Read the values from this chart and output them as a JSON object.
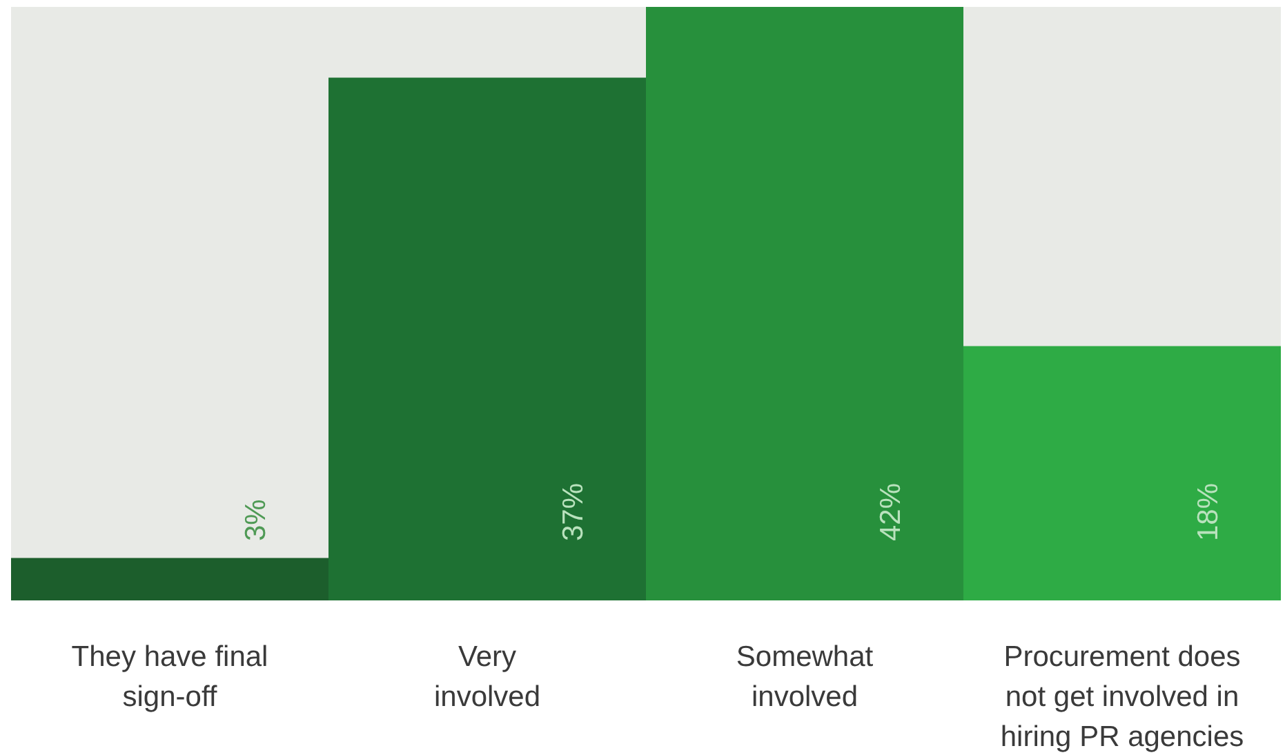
{
  "chart_data": {
    "type": "bar",
    "categories": [
      "They have final sign-off",
      "Very involved",
      "Somewhat involved",
      "Procurement does not get involved in hiring PR agencies"
    ],
    "values": [
      3,
      37,
      42,
      18
    ],
    "colors": [
      "#1c5e2c",
      "#1e7133",
      "#27903c",
      "#2eab45"
    ],
    "value_labels": [
      "3%",
      "37%",
      "42%",
      "18%"
    ],
    "grid": false,
    "tick_labels": "x"
  }
}
